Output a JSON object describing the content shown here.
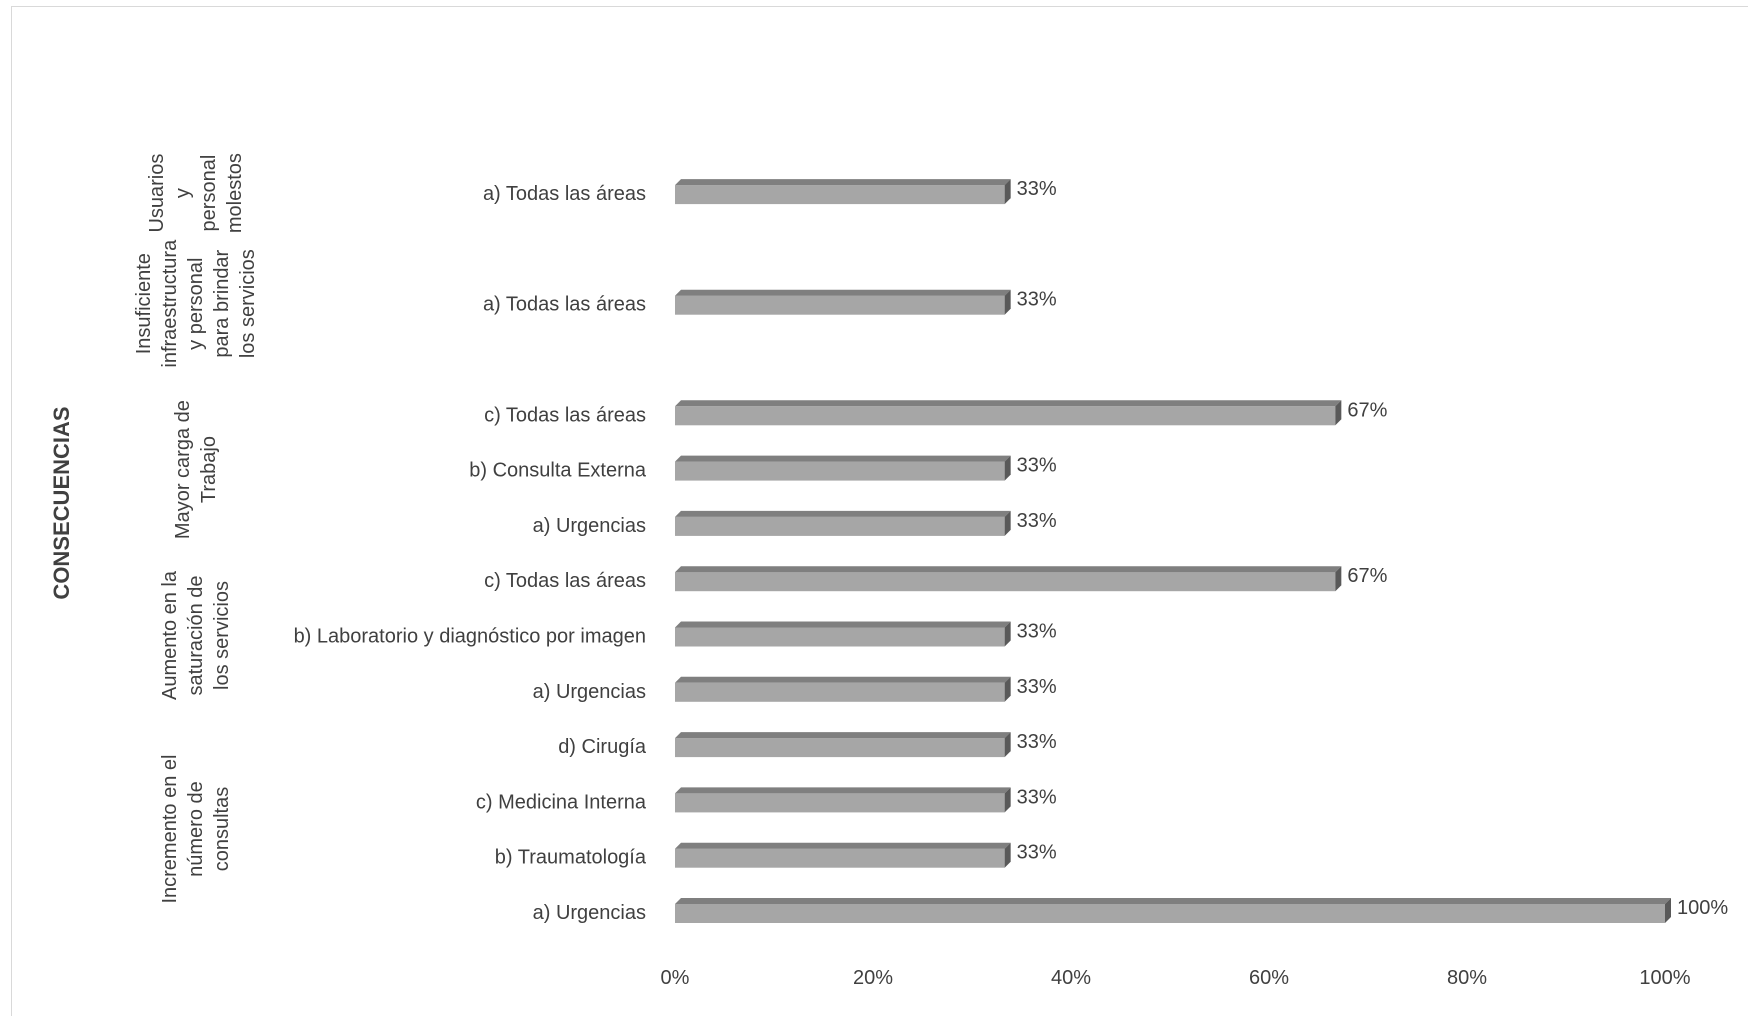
{
  "chart_data": {
    "type": "bar",
    "orientation": "horizontal",
    "style": "3d",
    "yaxis_title": "CONSECUENCIAS",
    "groups": [
      {
        "label": "Incremento en el número de consultas",
        "label_lines": [
          "Incremento en el",
          "número de",
          "consultas"
        ],
        "bars": [
          {
            "category": "a) Urgencias",
            "value": 1.0,
            "label": "100%"
          },
          {
            "category": "b) Traumatología",
            "value": 0.333,
            "label": "33%"
          },
          {
            "category": "c) Medicina Interna",
            "value": 0.333,
            "label": "33%"
          },
          {
            "category": "d) Cirugía",
            "value": 0.333,
            "label": "33%"
          }
        ]
      },
      {
        "label": "Aumento en la saturación de los servicios",
        "label_lines": [
          "Aumento en la",
          "saturación de",
          "los servicios"
        ],
        "bars": [
          {
            "category": "a) Urgencias",
            "value": 0.333,
            "label": "33%"
          },
          {
            "category": "b) Laboratorio y diagnóstico por imagen",
            "value": 0.333,
            "label": "33%"
          },
          {
            "category": "c) Todas las áreas",
            "value": 0.667,
            "label": "67%"
          }
        ]
      },
      {
        "label": "Mayor carga de Trabajo",
        "label_lines": [
          "Mayor carga de",
          "Trabajo"
        ],
        "bars": [
          {
            "category": "a) Urgencias",
            "value": 0.333,
            "label": "33%"
          },
          {
            "category": "b) Consulta Externa",
            "value": 0.333,
            "label": "33%"
          },
          {
            "category": "c) Todas las áreas",
            "value": 0.667,
            "label": "67%"
          }
        ]
      },
      {
        "label": "Insuficiente infraestructura y personal para brindar los servicios",
        "label_lines": [
          "Insuficiente",
          "infraestructura",
          "y personal",
          "para brindar",
          "los servicios"
        ],
        "bars": [
          {
            "category": "a) Todas las áreas",
            "value": 0.333,
            "label": "33%"
          }
        ]
      },
      {
        "label": "Usuarios y personal molestos",
        "label_lines": [
          "Usuarios",
          "y",
          "personal",
          "molestos"
        ],
        "bars": [
          {
            "category": "a) Todas las áreas",
            "value": 0.333,
            "label": "33%"
          }
        ]
      }
    ],
    "xaxis": {
      "ticks": [
        "0%",
        "20%",
        "40%",
        "60%",
        "80%",
        "100%"
      ],
      "xlim": [
        0,
        1
      ]
    },
    "grid": false,
    "legend": "none",
    "colors": {
      "bar_front": "#a6a6a6",
      "bar_top": "#7f7f7f",
      "bar_side": "#595959",
      "text": "#404040"
    }
  }
}
